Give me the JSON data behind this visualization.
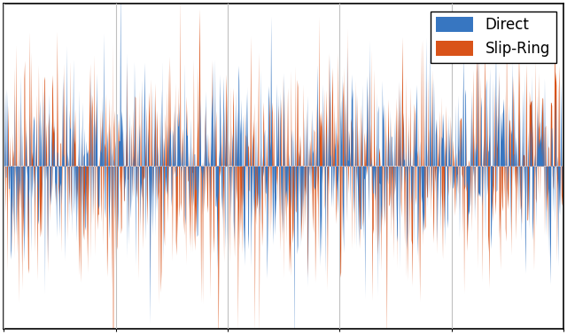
{
  "title": "",
  "xlabel": "",
  "ylabel": "",
  "color_direct": "#3776C1",
  "color_slipring": "#D95319",
  "legend_direct": "Direct",
  "legend_slipring": "Slip-Ring",
  "n_samples": 1000,
  "seed_direct": 42,
  "seed_slipring": 7,
  "amplitude_direct": 0.45,
  "amplitude_slipring": 0.55,
  "ylim": [
    -1.5,
    1.5
  ],
  "xlim": [
    0,
    1000
  ],
  "xticks": [
    0,
    200,
    400,
    600,
    800,
    1000
  ],
  "yticks": [],
  "xticklabels": [
    "",
    "",
    "",
    "",
    "",
    ""
  ],
  "yticklabels": [],
  "grid_color": "#c0c0c0",
  "grid_lw": 0.8,
  "legend_fontsize": 12,
  "line_lw": 0.7,
  "background_color": "#ffffff",
  "figure_background": "#ffffff",
  "spine_color": "#000000"
}
